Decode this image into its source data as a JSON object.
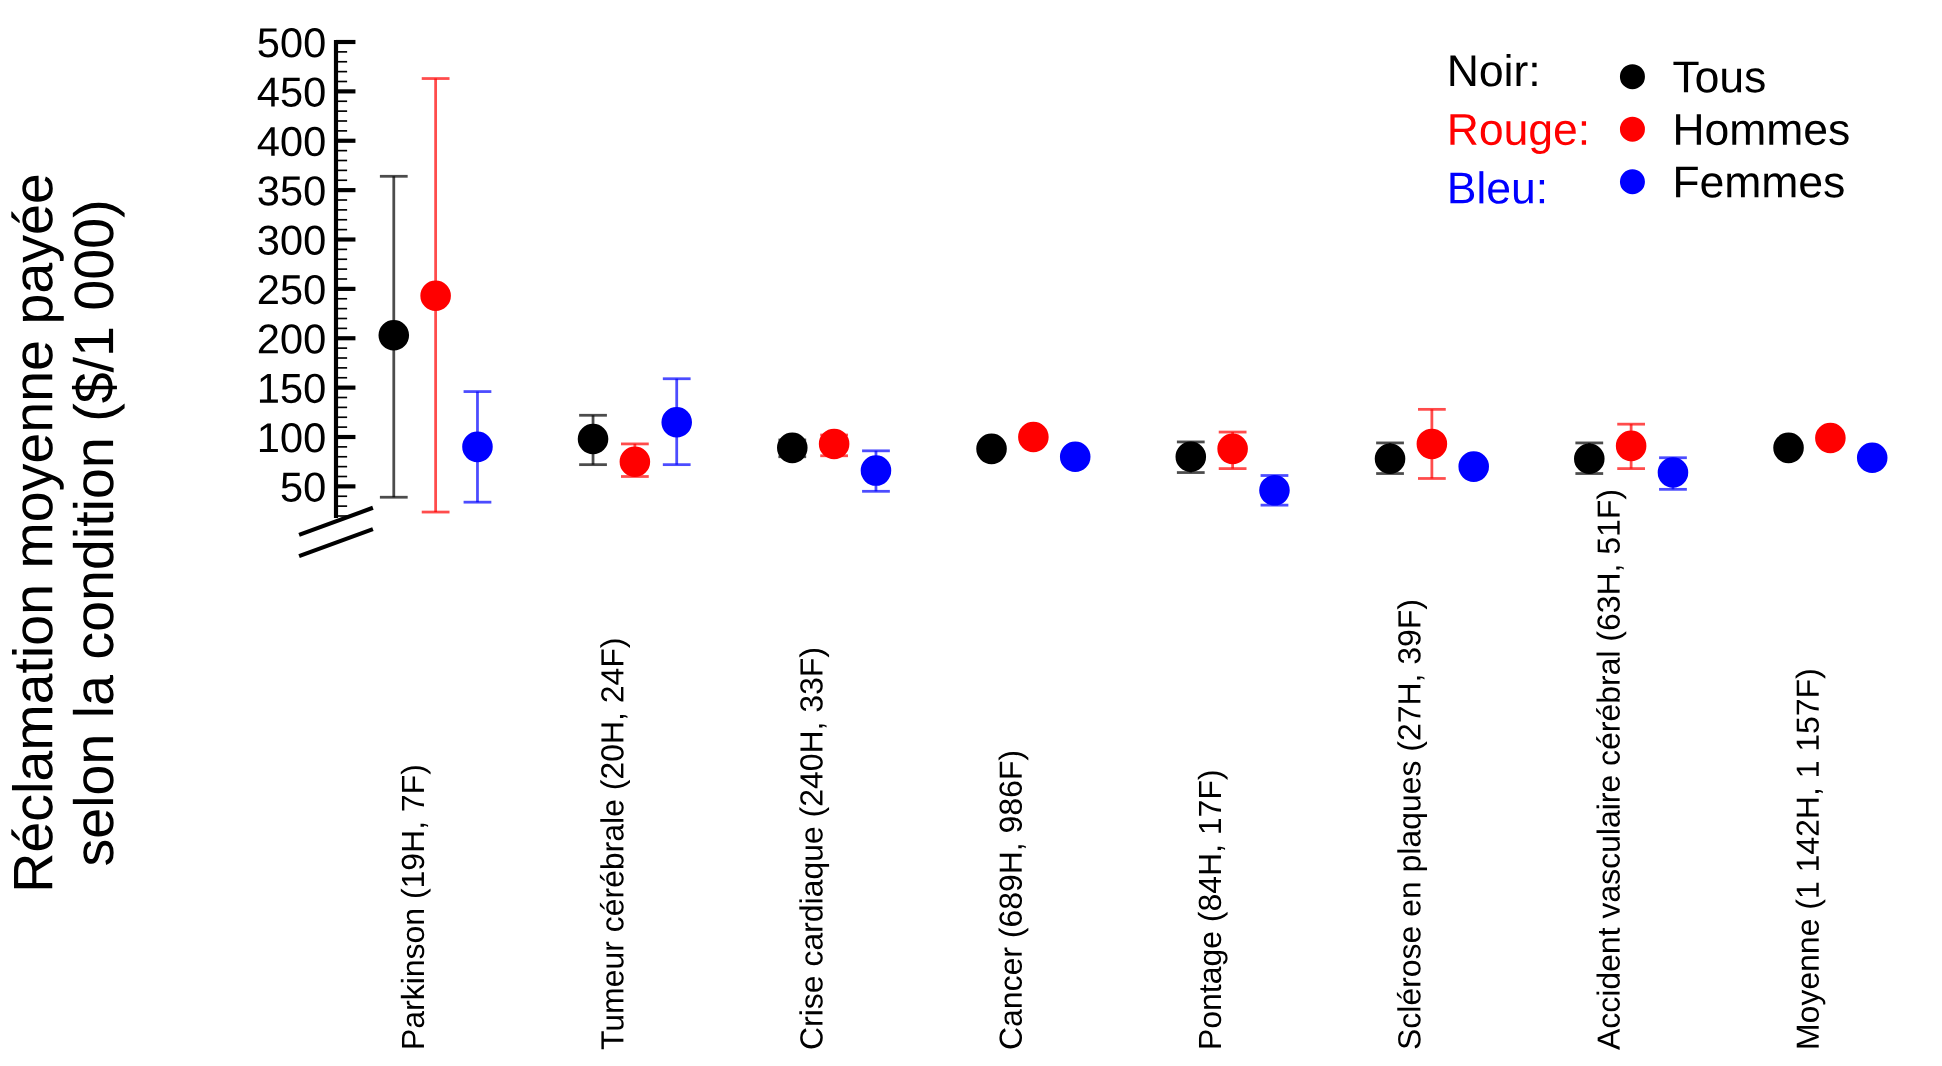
{
  "chart_data": {
    "type": "scatter",
    "ylabel": "Réclamation moyenne payée\nselon la condition ($/1 000)",
    "categories": [
      "Parkinson (19H, 7F)",
      "Tumeur cérébrale (20H, 24F)",
      "Crise cardiaque (240H, 33F)",
      "Cancer (689H, 986F)",
      "Pontage (84H, 17F)",
      "Sclérose en plaques (27H, 39F)",
      "Accident vasculaire cérébral (63H, 51F)",
      "Moyenne (1 142H, 1 157F)"
    ],
    "series": [
      {
        "name": "Tous",
        "color": "#000000",
        "values": [
          203,
          98,
          89,
          88,
          80,
          78,
          78,
          89
        ],
        "errors": [
          [
            39,
            364
          ],
          [
            72,
            122
          ],
          [
            80,
            97
          ],
          null,
          [
            64,
            95
          ],
          [
            63,
            94
          ],
          [
            63,
            94
          ],
          null
        ]
      },
      {
        "name": "Hommes",
        "color": "#ff0000",
        "values": [
          243,
          75,
          93,
          100,
          88,
          93,
          91,
          99
        ],
        "errors": [
          [
            24,
            463
          ],
          [
            60,
            93
          ],
          [
            81,
            102
          ],
          null,
          [
            68,
            105
          ],
          [
            58,
            128
          ],
          [
            68,
            113
          ],
          null
        ]
      },
      {
        "name": "Femmes",
        "color": "#0000ff",
        "values": [
          90,
          115,
          66,
          80,
          46,
          70,
          64,
          79
        ],
        "errors": [
          [
            34,
            146
          ],
          [
            72,
            159
          ],
          [
            45,
            86
          ],
          null,
          [
            31,
            61
          ],
          null,
          [
            47,
            79
          ],
          null
        ]
      }
    ],
    "annotations": [
      "Noir:",
      "Rouge:",
      "Bleu:"
    ],
    "ylim": [
      20,
      500
    ],
    "yticks": [
      50,
      100,
      150,
      200,
      250,
      300,
      350,
      400,
      450,
      500
    ],
    "marker": "circle",
    "legend": "top right",
    "grid": false
  }
}
